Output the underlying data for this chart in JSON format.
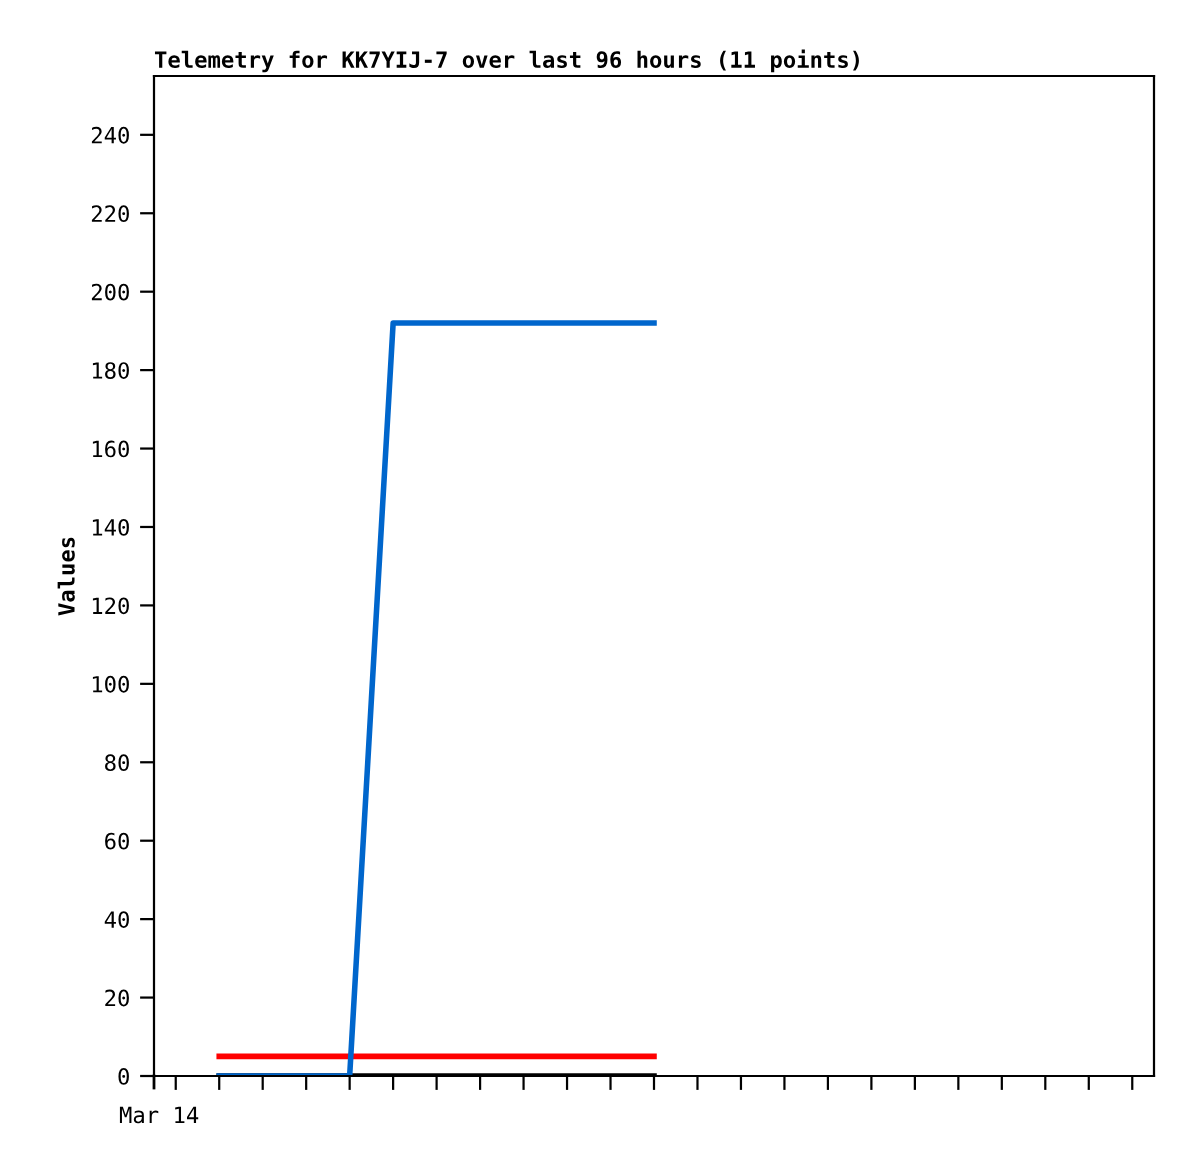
{
  "chart_data": {
    "type": "line",
    "title": "Telemetry for KK7YIJ-7 over last 96 hours (11 points)",
    "ylabel": "Values",
    "annotations": [
      "Mar 14"
    ],
    "categories": [
      null,
      null,
      null,
      null,
      null,
      null,
      null,
      null,
      null,
      null,
      null,
      null,
      null,
      null,
      null,
      null,
      null,
      null,
      null,
      null,
      null,
      null,
      null
    ],
    "ylim": [
      0,
      255
    ],
    "yticks": [
      0,
      20,
      40,
      60,
      80,
      100,
      120,
      140,
      160,
      180,
      200,
      220,
      240
    ],
    "grid": false,
    "marker": "none",
    "line_style": "solid",
    "series": [
      {
        "color": "#000000",
        "values": [
          null,
          0,
          0,
          0,
          0,
          0,
          0,
          0,
          0,
          0,
          0,
          0,
          null,
          null,
          null,
          null,
          null,
          null,
          null,
          null,
          null,
          null,
          null
        ]
      },
      {
        "color": "#ff0000",
        "values": [
          null,
          5,
          5,
          5,
          5,
          5,
          5,
          5,
          5,
          5,
          5,
          5,
          null,
          null,
          null,
          null,
          null,
          null,
          null,
          null,
          null,
          null,
          null
        ]
      },
      {
        "color": "#0066cc",
        "values": [
          null,
          0,
          0,
          0,
          0,
          192,
          192,
          192,
          192,
          192,
          192,
          192,
          null,
          null,
          null,
          null,
          null,
          null,
          null,
          null,
          null,
          null,
          null
        ]
      }
    ]
  }
}
